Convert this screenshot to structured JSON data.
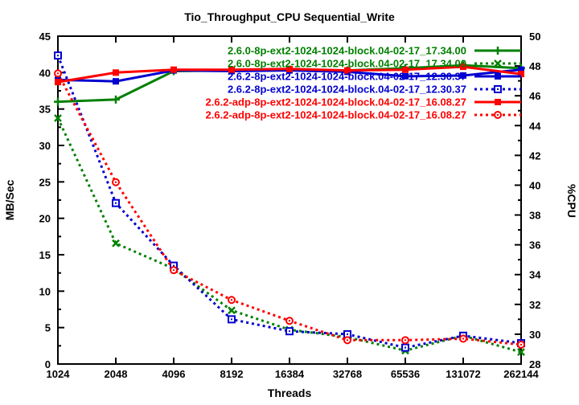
{
  "title": "Tio_Throughput_CPU Sequential_Write",
  "chart_data": {
    "type": "line",
    "title": "Tio_Throughput_CPU Sequential_Write",
    "xlabel": "Threads",
    "ylabel_left": "MB/Sec",
    "ylabel_right": "%CPU",
    "x_scale": "log2",
    "grid": false,
    "legend_position": "top-right-inside",
    "categories": [
      1024,
      2048,
      4096,
      8192,
      16384,
      32768,
      65536,
      131072,
      262144
    ],
    "x_tick_labels": [
      "1024",
      "2048",
      "4096",
      "8192",
      "16384",
      "32768",
      "65536",
      "131072",
      "262144"
    ],
    "y_left": {
      "min": 0,
      "max": 45,
      "major_step": 5,
      "minor_step": 2.5,
      "tick_labels": [
        "0",
        "5",
        "10",
        "15",
        "20",
        "25",
        "30",
        "35",
        "40",
        "45"
      ]
    },
    "y_right": {
      "min": 28,
      "max": 50,
      "major_step": 2,
      "minor_step": 1,
      "tick_labels": [
        "28",
        "30",
        "32",
        "34",
        "36",
        "38",
        "40",
        "42",
        "44",
        "46",
        "48",
        "50"
      ]
    },
    "series": [
      {
        "name": "2.6.0-8p-ext2-1024-1024-block.04-02-17_17.34.00",
        "axis": "left",
        "unit": "MB/Sec",
        "color": "#008000",
        "style": "solid",
        "marker": "plus",
        "values": [
          36.0,
          36.3,
          40.2,
          40.3,
          40.4,
          40.3,
          40.6,
          41.0,
          40.6
        ]
      },
      {
        "name": "2.6.0-8p-ext2-1024-1024-block.04-02-17_17.34.00",
        "axis": "right",
        "unit": "%CPU",
        "color": "#008000",
        "style": "dotted",
        "marker": "x-cross",
        "values": [
          44.5,
          36.1,
          34.4,
          31.6,
          30.3,
          29.8,
          28.9,
          29.9,
          28.8
        ]
      },
      {
        "name": "2.6.2-8p-ext2-1024-1024-block.04-02-17_12.30.37",
        "axis": "left",
        "unit": "MB/Sec",
        "color": "#0000d0",
        "style": "solid",
        "marker": "filled-square",
        "values": [
          39.0,
          38.8,
          40.3,
          40.2,
          40.3,
          40.1,
          39.5,
          39.6,
          40.4
        ]
      },
      {
        "name": "2.6.2-8p-ext2-1024-1024-block.04-02-17_12.30.37",
        "axis": "right",
        "unit": "%CPU",
        "color": "#0000d0",
        "style": "dotted",
        "marker": "open-square",
        "values": [
          48.7,
          38.8,
          34.6,
          31.0,
          30.2,
          30.0,
          29.1,
          29.9,
          29.4
        ]
      },
      {
        "name": "2.6.2-adp-8p-ext2-1024-1024-block.04-02-17_16.08.27",
        "axis": "left",
        "unit": "MB/Sec",
        "color": "#ff0000",
        "style": "solid",
        "marker": "filled-square",
        "values": [
          38.7,
          40.0,
          40.4,
          40.4,
          40.5,
          40.3,
          40.4,
          40.8,
          39.8
        ]
      },
      {
        "name": "2.6.2-adp-8p-ext2-1024-1024-block.04-02-17_16.08.27",
        "axis": "right",
        "unit": "%CPU",
        "color": "#ff0000",
        "style": "dotted",
        "marker": "open-circle",
        "values": [
          47.5,
          40.2,
          34.3,
          32.3,
          30.9,
          29.6,
          29.6,
          29.7,
          29.3
        ]
      }
    ]
  },
  "layout_colors": {
    "background": "#ffffff",
    "border": "#000000",
    "text": "#000000"
  }
}
